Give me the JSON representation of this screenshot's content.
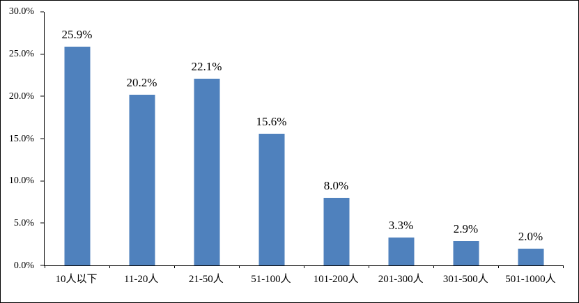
{
  "chart_data": {
    "type": "bar",
    "title": "",
    "xlabel": "",
    "ylabel": "",
    "categories": [
      "10人以下",
      "11-20人",
      "21-50人",
      "51-100人",
      "101-200人",
      "201-300人",
      "301-500人",
      "501-1000人"
    ],
    "values": [
      25.9,
      20.2,
      22.1,
      15.6,
      8.0,
      3.3,
      2.9,
      2.0
    ],
    "value_labels": [
      "25.9%",
      "20.2%",
      "22.1%",
      "15.6%",
      "8.0%",
      "3.3%",
      "2.9%",
      "2.0%"
    ],
    "ylim": [
      0,
      30
    ],
    "ytick_step": 5,
    "ytick_labels": [
      "0.0%",
      "5.0%",
      "10.0%",
      "15.0%",
      "20.0%",
      "25.0%",
      "30.0%"
    ],
    "grid": false,
    "legend_position": "none",
    "bar_color": "#4f81bd",
    "axis_color": "#000000"
  }
}
